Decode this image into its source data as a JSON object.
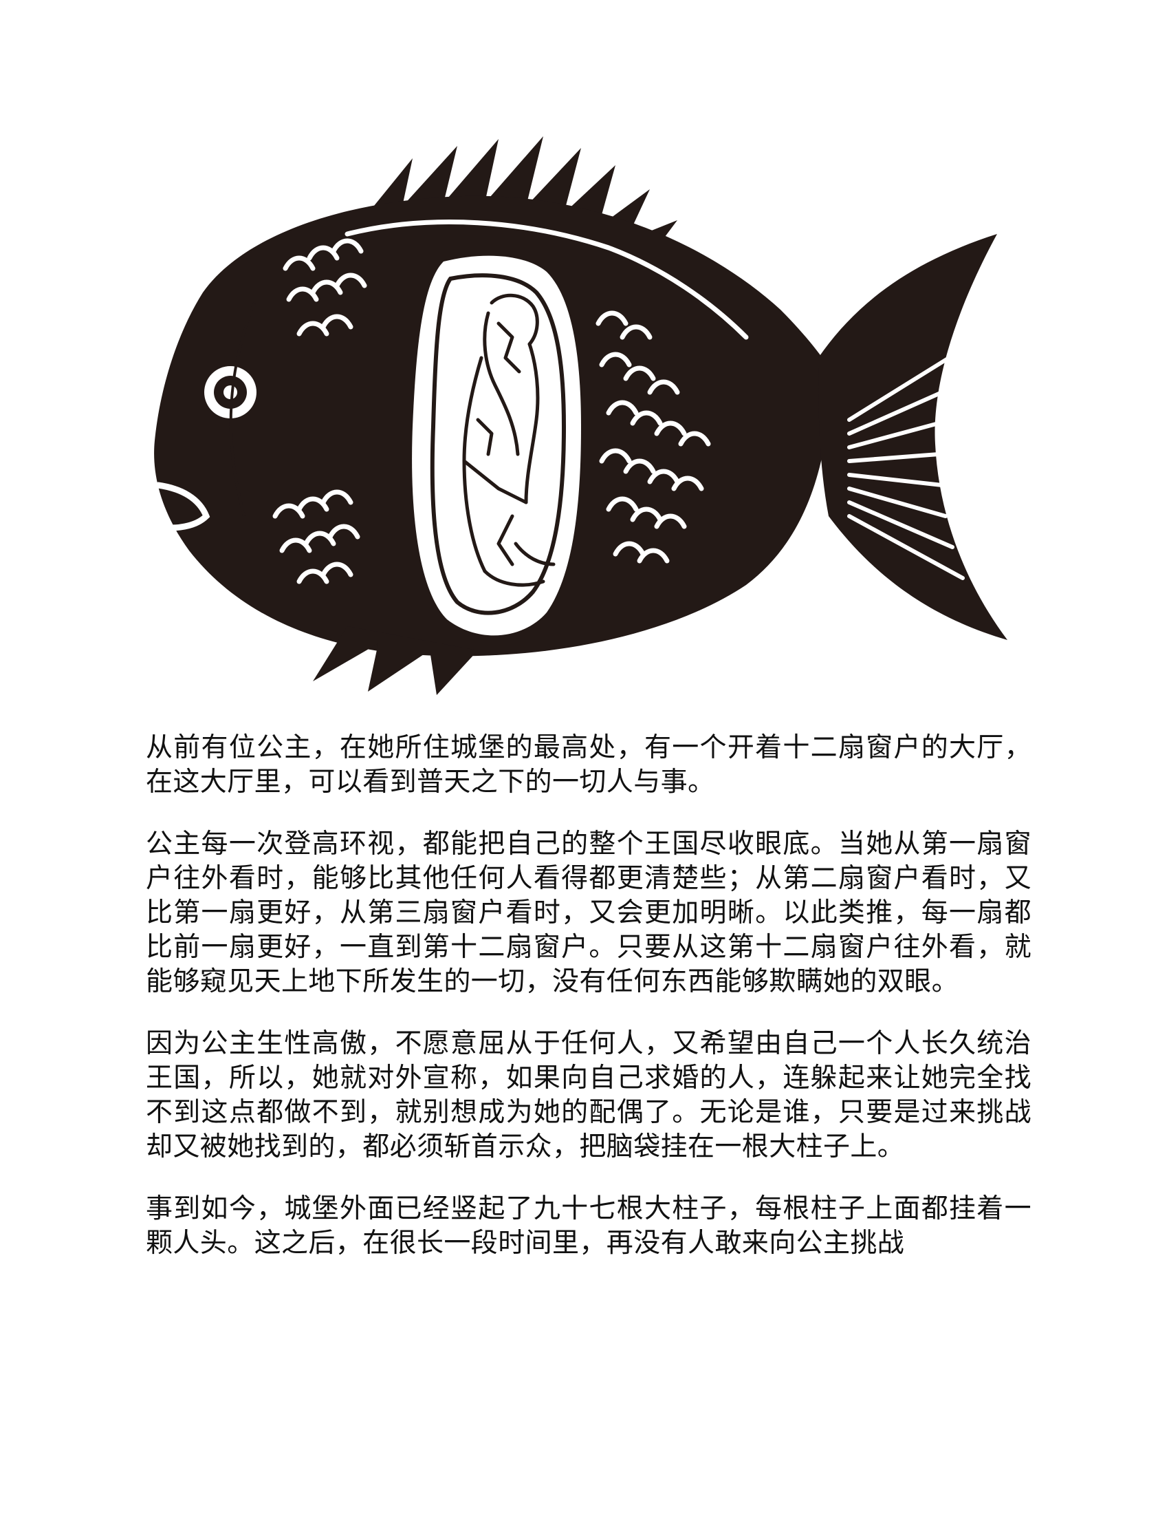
{
  "illustration": {
    "icon": "fish-with-crouching-figure-icon",
    "fill_color": "#231916",
    "accent_color": "#ffffff"
  },
  "story": {
    "paragraphs": [
      "从前有位公主，在她所住城堡的最高处，有一个开着十二扇窗户的大厅，在这大厅里，可以看到普天之下的一切人与事。",
      "公主每一次登高环视，都能把自己的整个王国尽收眼底。当她从第一扇窗户往外看时，能够比其他任何人看得都更清楚些；从第二扇窗户看时，又比第一扇更好，从第三扇窗户看时，又会更加明晰。以此类推，每一扇都比前一扇更好，一直到第十二扇窗户。只要从这第十二扇窗户往外看，就能够窥见天上地下所发生的一切，没有任何东西能够欺瞒她的双眼。",
      "因为公主生性高傲，不愿意屈从于任何人，又希望由自己一个人长久统治王国，所以，她就对外宣称，如果向自己求婚的人，连躲起来让她完全找不到这点都做不到，就别想成为她的配偶了。无论是谁，只要是过来挑战却又被她找到的，都必须斩首示众，把脑袋挂在一根大柱子上。",
      "事到如今，城堡外面已经竖起了九十七根大柱子，每根柱子上面都挂着一颗人头。这之后，在很长一段时间里，再没有人敢来向公主挑战"
    ]
  }
}
